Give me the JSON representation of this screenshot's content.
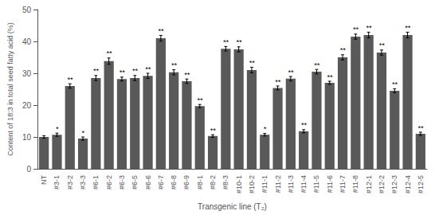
{
  "chart_data": {
    "type": "bar",
    "xlabel": "Transgenic line (T₂)",
    "ylabel": "Content of 18:3 in total seed fatty acid (%)",
    "categories": [
      "NT",
      "#3-1",
      "#3-2",
      "#3-3",
      "#6-1",
      "#6-2",
      "#6-3",
      "#6-5",
      "#6-6",
      "#6-7",
      "#6-8",
      "#6-9",
      "#8-1",
      "#8-2",
      "#8-3",
      "#10-1",
      "#10-2",
      "#11-1",
      "#11-2",
      "#11-3",
      "#11-4",
      "#11-5",
      "#11-6",
      "#11-7",
      "#11-8",
      "#12-1",
      "#12-2",
      "#12-3",
      "#12-4",
      "#12-5"
    ],
    "values": [
      10.0,
      10.7,
      26.0,
      9.5,
      28.5,
      33.8,
      28.2,
      28.5,
      29.2,
      41.0,
      30.3,
      27.5,
      19.7,
      10.3,
      37.7,
      37.5,
      31.0,
      10.7,
      25.4,
      28.3,
      11.8,
      30.5,
      27.0,
      35.0,
      41.5,
      42.0,
      36.5,
      24.5,
      42.0,
      11.0
    ],
    "errors": [
      0.4,
      0.5,
      0.7,
      0.5,
      0.8,
      1.0,
      0.6,
      0.8,
      0.8,
      0.9,
      0.8,
      0.7,
      0.5,
      0.4,
      0.7,
      0.8,
      0.9,
      0.4,
      0.6,
      0.7,
      0.5,
      0.7,
      0.5,
      0.8,
      0.8,
      0.9,
      0.8,
      0.6,
      0.9,
      0.5
    ],
    "annotations": [
      null,
      "*",
      "**",
      "*",
      "**",
      "**",
      "**",
      "**",
      "**",
      "**",
      "**",
      "**",
      "**",
      "**",
      "**",
      "**",
      "**",
      "*",
      "**",
      "**",
      "**",
      "**",
      "**",
      "**",
      "**",
      "**",
      "**",
      "**",
      "**",
      "**"
    ],
    "color": "#595959",
    "ylim": [
      0,
      50
    ],
    "yticks": [
      0,
      10,
      20,
      30,
      40,
      50
    ],
    "grid": false
  }
}
